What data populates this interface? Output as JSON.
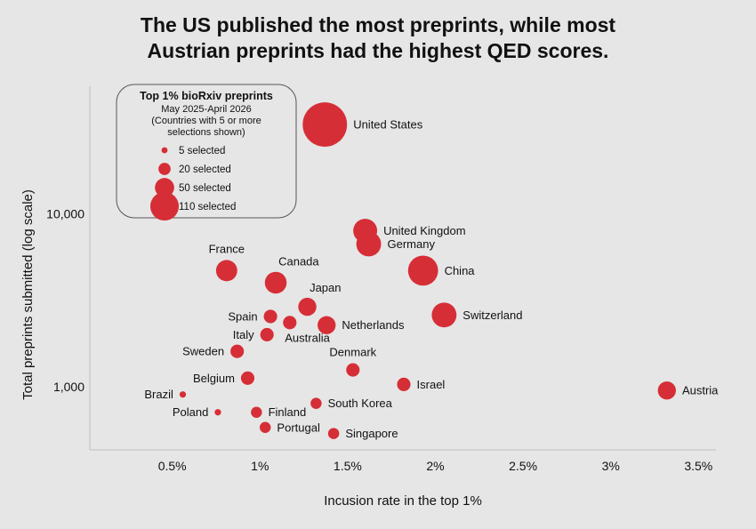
{
  "chart_data": {
    "type": "scatter",
    "title_line1": "The US published the most preprints, while most",
    "title_line2": "Austrian preprints had the highest QED scores.",
    "xlabel": "Incusion rate in the top 1%",
    "ylabel": "Total preprints submitted (log scale)",
    "xlim": [
      0.03,
      3.6
    ],
    "ylim_log": [
      430,
      55000
    ],
    "x_ticks": [
      {
        "value": 0.5,
        "label": "0.5%"
      },
      {
        "value": 1,
        "label": "1%"
      },
      {
        "value": 1.5,
        "label": "1.5%"
      },
      {
        "value": 2,
        "label": "2%"
      },
      {
        "value": 2.5,
        "label": "2.5%"
      },
      {
        "value": 3,
        "label": "3%"
      },
      {
        "value": 3.5,
        "label": "3.5%"
      }
    ],
    "y_ticks": [
      {
        "value": 1000,
        "label": "1,000"
      },
      {
        "value": 10000,
        "label": "10,000"
      }
    ],
    "point_color": "#d62e36",
    "legend": {
      "title": "Top 1% bioRxiv preprints",
      "subtitle1": "May 2025-April 2026",
      "subtitle2": "(Countries with 5 or more",
      "subtitle3": "selections shown)",
      "items": [
        {
          "size": 5,
          "label": "5 selected"
        },
        {
          "size": 20,
          "label": "20 selected"
        },
        {
          "size": 50,
          "label": "50 selected"
        },
        {
          "size": 110,
          "label": "110 selected"
        }
      ]
    },
    "points": [
      {
        "name": "United States",
        "x": 1.37,
        "y": 33000,
        "size": 240,
        "anchor": "right"
      },
      {
        "name": "United Kingdom",
        "x": 1.6,
        "y": 8000,
        "size": 70,
        "anchor": "right"
      },
      {
        "name": "Germany",
        "x": 1.62,
        "y": 6700,
        "size": 75,
        "anchor": "right"
      },
      {
        "name": "China",
        "x": 1.93,
        "y": 4700,
        "size": 110,
        "anchor": "right"
      },
      {
        "name": "France",
        "x": 0.81,
        "y": 4700,
        "size": 55,
        "anchor": "top"
      },
      {
        "name": "Canada",
        "x": 1.09,
        "y": 4000,
        "size": 58,
        "anchor": "top-right"
      },
      {
        "name": "Switzerland",
        "x": 2.05,
        "y": 2600,
        "size": 75,
        "anchor": "right"
      },
      {
        "name": "Japan",
        "x": 1.27,
        "y": 2900,
        "size": 40,
        "anchor": "top-right"
      },
      {
        "name": "Spain",
        "x": 1.06,
        "y": 2550,
        "size": 22,
        "anchor": "left"
      },
      {
        "name": "Australia",
        "x": 1.17,
        "y": 2350,
        "size": 22,
        "anchor": "bottom-right"
      },
      {
        "name": "Netherlands",
        "x": 1.38,
        "y": 2270,
        "size": 40,
        "anchor": "right"
      },
      {
        "name": "Italy",
        "x": 1.04,
        "y": 2000,
        "size": 22,
        "anchor": "left"
      },
      {
        "name": "Sweden",
        "x": 0.87,
        "y": 1600,
        "size": 22,
        "anchor": "left"
      },
      {
        "name": "Denmark",
        "x": 1.53,
        "y": 1250,
        "size": 22,
        "anchor": "top"
      },
      {
        "name": "Belgium",
        "x": 0.93,
        "y": 1120,
        "size": 22,
        "anchor": "left"
      },
      {
        "name": "Israel",
        "x": 1.82,
        "y": 1030,
        "size": 22,
        "anchor": "right"
      },
      {
        "name": "Austria",
        "x": 3.32,
        "y": 950,
        "size": 40,
        "anchor": "right"
      },
      {
        "name": "Brazil",
        "x": 0.56,
        "y": 900,
        "size": 5,
        "anchor": "left"
      },
      {
        "name": "South Korea",
        "x": 1.32,
        "y": 800,
        "size": 15,
        "anchor": "right"
      },
      {
        "name": "Poland",
        "x": 0.76,
        "y": 710,
        "size": 5,
        "anchor": "left"
      },
      {
        "name": "Finland",
        "x": 0.98,
        "y": 710,
        "size": 15,
        "anchor": "right"
      },
      {
        "name": "Portugal",
        "x": 1.03,
        "y": 580,
        "size": 15,
        "anchor": "right"
      },
      {
        "name": "Singapore",
        "x": 1.42,
        "y": 535,
        "size": 15,
        "anchor": "right"
      }
    ]
  }
}
